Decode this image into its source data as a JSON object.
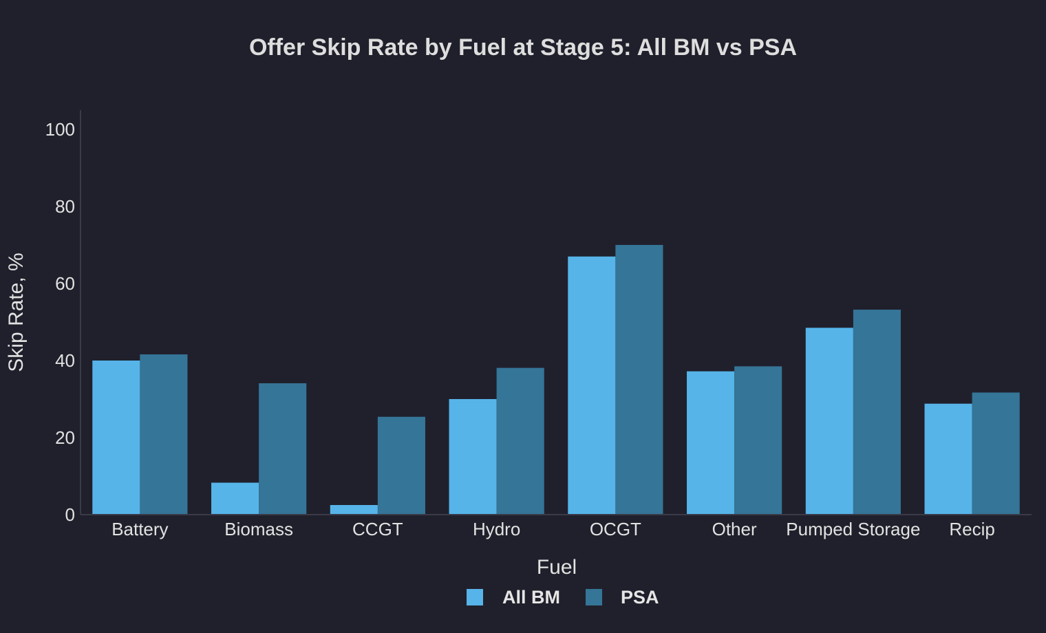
{
  "chart_data": {
    "type": "bar",
    "title": "Offer Skip Rate by Fuel at Stage 5: All BM vs PSA",
    "xlabel": "Fuel",
    "ylabel": "Skip Rate, %",
    "categories": [
      "Battery",
      "Biomass",
      "CCGT",
      "Hydro",
      "OCGT",
      "Other",
      "Pumped Storage",
      "Recip"
    ],
    "series": [
      {
        "name": "All BM",
        "color": "#56b4e9",
        "values": [
          40.0,
          8.3,
          2.5,
          30.0,
          67.0,
          37.2,
          48.5,
          28.8
        ]
      },
      {
        "name": "PSA",
        "color": "#357597",
        "values": [
          41.6,
          34.1,
          25.4,
          38.1,
          70.0,
          38.5,
          53.2,
          31.7
        ]
      }
    ],
    "ylim": [
      0,
      105
    ],
    "yticks": [
      0,
      20,
      40,
      60,
      80,
      100
    ],
    "grid": false,
    "legend_position": "bottom"
  }
}
